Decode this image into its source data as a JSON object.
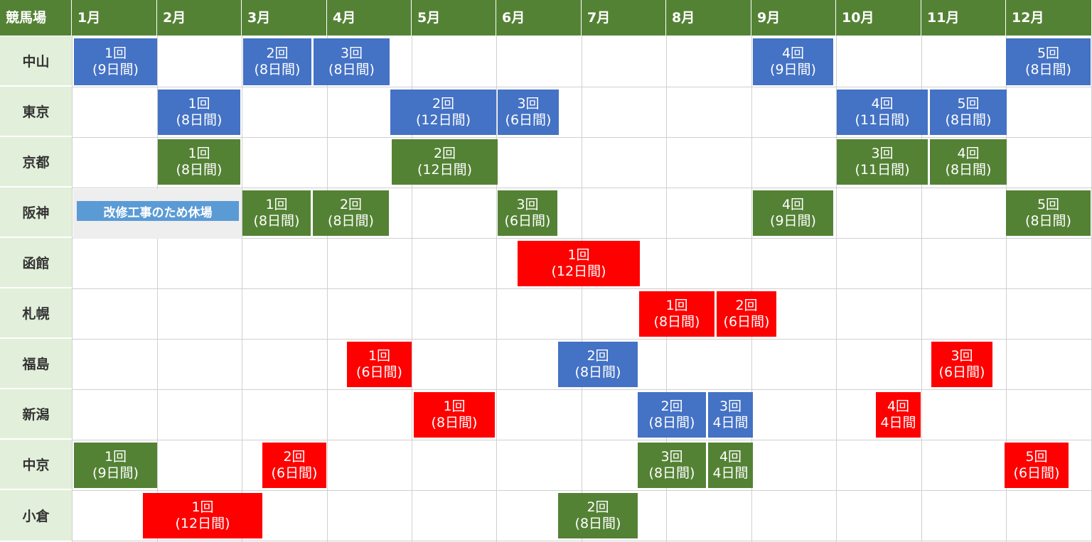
{
  "header": {
    "venue_col": "競馬場",
    "months": [
      "1月",
      "2月",
      "3月",
      "4月",
      "5月",
      "6月",
      "7月",
      "8月",
      "9月",
      "10月",
      "11月",
      "12月"
    ]
  },
  "venues": [
    "中山",
    "東京",
    "京都",
    "阪神",
    "函館",
    "札幌",
    "福島",
    "新潟",
    "中京",
    "小倉"
  ],
  "closed_note": "改修工事のため休場",
  "colors": {
    "header": "#548235",
    "venue_bg": "#e2efda",
    "blue": "#4472c4",
    "green": "#548235",
    "red": "#ff0000",
    "closed_label": "#5b9bd5"
  },
  "meetings": {
    "nakayama_1": {
      "round": "1回",
      "days": "(9日間)",
      "color": "blue"
    },
    "nakayama_2": {
      "round": "2回",
      "days": "(8日間)",
      "color": "blue"
    },
    "nakayama_3": {
      "round": "3回",
      "days": "(8日間)",
      "color": "blue"
    },
    "nakayama_4": {
      "round": "4回",
      "days": "(9日間)",
      "color": "blue"
    },
    "nakayama_5": {
      "round": "5回",
      "days": "(8日間)",
      "color": "blue"
    },
    "tokyo_1": {
      "round": "1回",
      "days": "(8日間)",
      "color": "blue"
    },
    "tokyo_2": {
      "round": "2回",
      "days": "(12日間)",
      "color": "blue"
    },
    "tokyo_3": {
      "round": "3回",
      "days": "(6日間)",
      "color": "blue"
    },
    "tokyo_4": {
      "round": "4回",
      "days": "(11日間)",
      "color": "blue"
    },
    "tokyo_5": {
      "round": "5回",
      "days": "(8日間)",
      "color": "blue"
    },
    "kyoto_1": {
      "round": "1回",
      "days": "(8日間)",
      "color": "green"
    },
    "kyoto_2": {
      "round": "2回",
      "days": "(12日間)",
      "color": "green"
    },
    "kyoto_3": {
      "round": "3回",
      "days": "(11日間)",
      "color": "green"
    },
    "kyoto_4": {
      "round": "4回",
      "days": "(8日間)",
      "color": "green"
    },
    "hanshin_1": {
      "round": "1回",
      "days": "(8日間)",
      "color": "green"
    },
    "hanshin_2": {
      "round": "2回",
      "days": "(8日間)",
      "color": "green"
    },
    "hanshin_3": {
      "round": "3回",
      "days": "(6日間)",
      "color": "green"
    },
    "hanshin_4": {
      "round": "4回",
      "days": "(9日間)",
      "color": "green"
    },
    "hanshin_5": {
      "round": "5回",
      "days": "(8日間)",
      "color": "green"
    },
    "hakodate_1": {
      "round": "1回",
      "days": "(12日間)",
      "color": "red"
    },
    "sapporo_1": {
      "round": "1回",
      "days": "(8日間)",
      "color": "red"
    },
    "sapporo_2": {
      "round": "2回",
      "days": "(6日間)",
      "color": "red"
    },
    "fukushima_1": {
      "round": "1回",
      "days": "(6日間)",
      "color": "red"
    },
    "fukushima_2": {
      "round": "2回",
      "days": "(8日間)",
      "color": "blue"
    },
    "fukushima_3": {
      "round": "3回",
      "days": "(6日間)",
      "color": "red"
    },
    "niigata_1": {
      "round": "1回",
      "days": "(8日間)",
      "color": "red"
    },
    "niigata_2": {
      "round": "2回",
      "days": "(8日間)",
      "color": "blue"
    },
    "niigata_3": {
      "round": "3回",
      "days": "4日間",
      "color": "blue"
    },
    "niigata_4": {
      "round": "4回",
      "days": "4日間",
      "color": "red"
    },
    "chukyo_1": {
      "round": "1回",
      "days": "(9日間)",
      "color": "green"
    },
    "chukyo_2": {
      "round": "2回",
      "days": "(6日間)",
      "color": "red"
    },
    "chukyo_3": {
      "round": "3回",
      "days": "(8日間)",
      "color": "green"
    },
    "chukyo_4": {
      "round": "4回",
      "days": "4日間",
      "color": "green"
    },
    "chukyo_5": {
      "round": "5回",
      "days": "(6日間)",
      "color": "red"
    },
    "kokura_1": {
      "round": "1回",
      "days": "(12日間)",
      "color": "red"
    },
    "kokura_2": {
      "round": "2回",
      "days": "(8日間)",
      "color": "green"
    }
  }
}
